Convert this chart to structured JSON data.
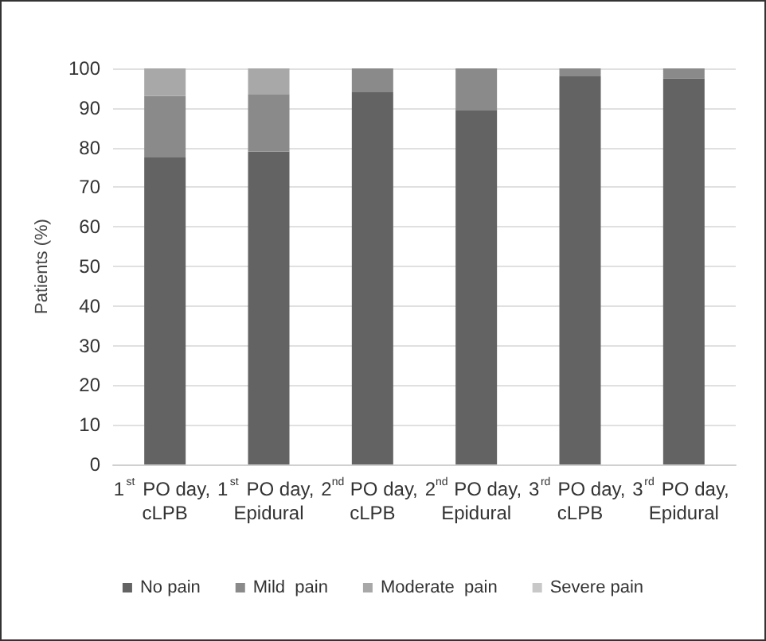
{
  "chart_data": {
    "type": "bar",
    "stacked": true,
    "ylabel": "Patients (%)",
    "categories": [
      "1$^{st}$ PO day, cLPB",
      "1$^{st}$ PO day, Epidural",
      "2$^{nd}$ PO day, cLPB",
      "2$^{nd}$ PO day, Epidural",
      "3$^{rd}$ PO day, cLPB",
      "3$^{rd}$ PO day, Epidural"
    ],
    "series": [
      {
        "name": "No pain",
        "color": "#636363",
        "values": [
          77.5,
          79,
          94,
          89.5,
          98,
          97.5
        ]
      },
      {
        "name": "Mild  pain",
        "color": "#8a8a8a",
        "values": [
          15.5,
          14.5,
          6,
          10.5,
          2,
          2.5
        ]
      },
      {
        "name": "Moderate  pain",
        "color": "#a8a8a8",
        "values": [
          7,
          6.5,
          0,
          0,
          0,
          0
        ]
      },
      {
        "name": "Severe pain",
        "color": "#c8c8c8",
        "values": [
          0,
          0,
          0,
          0,
          0,
          0
        ]
      }
    ],
    "ylim": [
      0,
      100
    ],
    "yticks": [
      0,
      10,
      20,
      30,
      40,
      50,
      60,
      70,
      80,
      90,
      100
    ],
    "grid": "y",
    "legend": "bottom"
  }
}
